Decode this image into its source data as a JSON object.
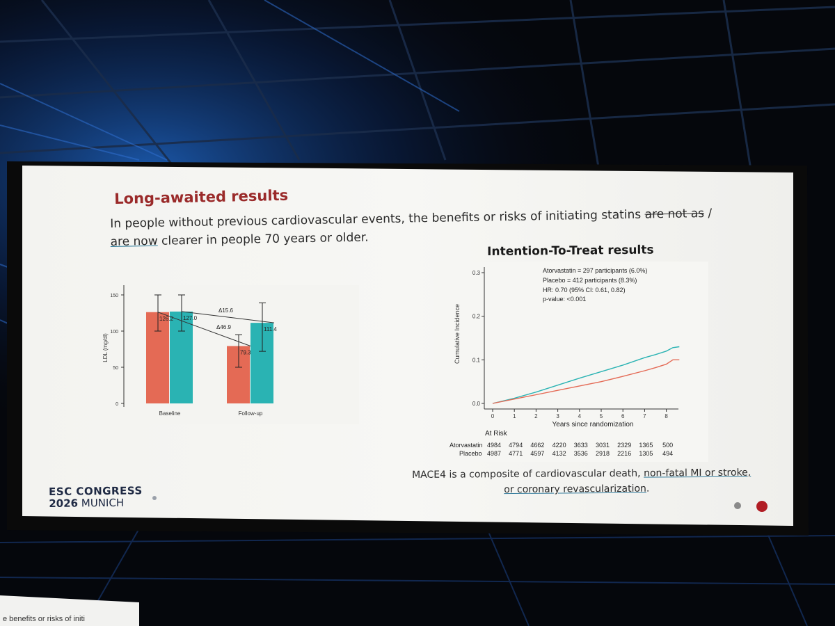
{
  "slide": {
    "title": "Long-awaited results",
    "lead_text_1": "In people without previous cardiovascular events, the benefits or risks of initiating statins ",
    "lead_struck": "are not as",
    "lead_slash": " /",
    "lead_underlined": "are now",
    "lead_text_2": " clearer in people 70 years or older.",
    "itt_title": "Intention-To-Treat results",
    "mace_prefix": "MACE4 is a composite of cardiovascular death, ",
    "mace_underlined_1": "non-fatal MI or stroke,",
    "mace_underlined_2": "or coronary revascularization",
    "mace_suffix": ".",
    "footer_line1": "ESC CONGRESS",
    "footer_year": "2026",
    "footer_city": " MUNICH"
  },
  "thumbnail_caption": "e benefits or risks of initi",
  "colors": {
    "accent_red": "#9a2a2a",
    "atorvastatin": "#2ab3b3",
    "placebo": "#e46a55",
    "nav_active": "#b11d24",
    "nav_inactive": "#8a8a8a"
  },
  "chart_data": [
    {
      "type": "bar",
      "categories": [
        "Baseline",
        "Follow-up"
      ],
      "series": [
        {
          "values": [
            126.2,
            79.3
          ],
          "color": "#e46a55"
        },
        {
          "values": [
            127.0,
            111.4
          ],
          "color": "#2ab3b3"
        }
      ],
      "error_high": [
        150,
        150,
        95,
        139
      ],
      "error_low": [
        100,
        100,
        50,
        72
      ],
      "ylabel": "LDL (mg/dl)",
      "yticks": [
        0,
        50,
        100,
        150
      ],
      "ylim": [
        0,
        150
      ],
      "value_labels": [
        "126.2",
        "127.0",
        "79.3",
        "111.4"
      ],
      "annotations": [
        "Δ15.6",
        "Δ46.9"
      ]
    },
    {
      "type": "line",
      "title": "",
      "ylabel": "Cumulative Incidence",
      "xlabel": "Years since randomization",
      "xticks": [
        0,
        1,
        2,
        3,
        4,
        5,
        6,
        7,
        8
      ],
      "yticks": [
        0.0,
        0.1,
        0.2,
        0.3
      ],
      "ytick_labels": [
        "0.0",
        "0.1",
        "0.2",
        "0.3"
      ],
      "xlim": [
        0,
        8.8
      ],
      "ylim": [
        0,
        0.3
      ],
      "legend": [
        "Atorvastatin = 297 participants (6.0%)",
        "Placebo  = 412 participants (8.3%)",
        "HR: 0.70 (95% CI: 0.61, 0.82)",
        "p-value: <0.001"
      ],
      "series": [
        {
          "color": "#2ab3b3",
          "x": [
            0,
            1,
            2,
            3,
            4,
            5,
            6,
            7,
            7.5,
            8,
            8.3,
            8.6
          ],
          "y": [
            0,
            0.012,
            0.026,
            0.042,
            0.058,
            0.073,
            0.088,
            0.105,
            0.112,
            0.12,
            0.128,
            0.13
          ]
        },
        {
          "color": "#e46a55",
          "x": [
            0,
            1,
            2,
            3,
            4,
            5,
            6,
            7,
            7.5,
            8,
            8.3,
            8.6
          ],
          "y": [
            0,
            0.01,
            0.02,
            0.03,
            0.04,
            0.05,
            0.062,
            0.075,
            0.082,
            0.09,
            0.1,
            0.1
          ]
        }
      ],
      "at_risk_header": "At Risk",
      "at_risk": [
        {
          "label": "Atorvastatin",
          "values": [
            "4984",
            "4794",
            "4662",
            "4220",
            "3633",
            "3031",
            "2329",
            "1365",
            "500"
          ]
        },
        {
          "label": "Placebo",
          "values": [
            "4987",
            "4771",
            "4597",
            "4132",
            "3536",
            "2918",
            "2216",
            "1305",
            "494"
          ]
        }
      ]
    }
  ]
}
